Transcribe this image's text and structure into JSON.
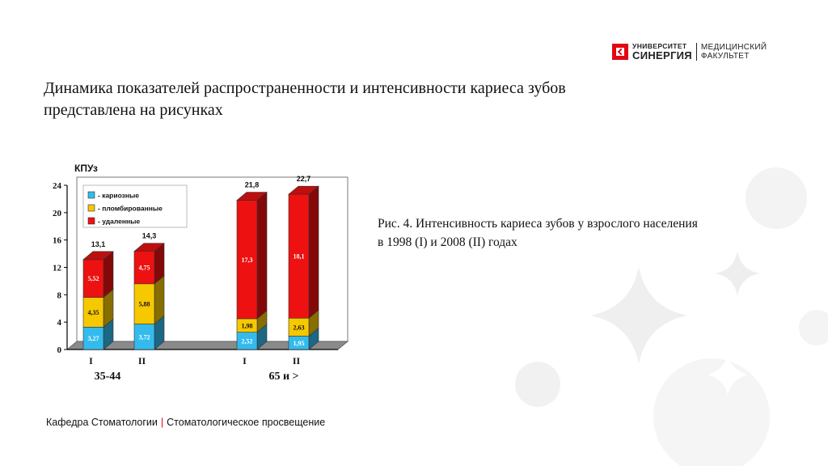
{
  "header": {
    "logo_line1": "УНИВЕРСИТЕТ",
    "logo_line2": "СИНЕРГИЯ",
    "logo_right1": "МЕДИЦИНСКИЙ",
    "logo_right2": "ФАКУЛЬТЕТ"
  },
  "slide": {
    "title_line1": "Динамика показателей распространенности и интенсивности кариеса зубов",
    "title_line2": "представлена на рисунках",
    "caption_line1": "Рис. 4. Интенсивность кариеса зубов у взрослого населения",
    "caption_line2": "в 1998 (I) и 2008 (II) годах"
  },
  "footer": {
    "left": "Кафедра Стоматологии",
    "right": "Стоматологическое просвещение"
  },
  "chart_data": {
    "type": "bar",
    "stacked": true,
    "ylabel": "КПУз",
    "ylim": [
      0,
      24
    ],
    "yticks": [
      "0",
      "4",
      "8",
      "12",
      "16",
      "20",
      "24"
    ],
    "categories": [
      "I",
      "II",
      "I",
      "II"
    ],
    "groups": [
      {
        "label": "35-44",
        "categories": [
          "I",
          "II"
        ]
      },
      {
        "label": "65 и >",
        "categories": [
          "I",
          "II"
        ]
      }
    ],
    "series": [
      {
        "name": "- кариозные",
        "color": "#33bbee",
        "values": [
          3.27,
          3.72,
          2.52,
          1.95
        ],
        "labels": [
          "3,27",
          "3,72",
          "2,52",
          "1,95"
        ]
      },
      {
        "name": "- пломбированные",
        "color": "#f5c800",
        "values": [
          4.35,
          5.88,
          1.98,
          2.63
        ],
        "labels": [
          "4,35",
          "5,88",
          "1,98",
          "2,63"
        ]
      },
      {
        "name": "- удаленные",
        "color": "#ee1111",
        "values": [
          5.52,
          4.75,
          17.3,
          18.1
        ],
        "labels": [
          "5,52",
          "4,75",
          "17,3",
          "18,1"
        ]
      }
    ],
    "totals": [
      13.1,
      14.3,
      21.8,
      22.7
    ],
    "total_labels": [
      "13,1",
      "14,3",
      "21,8",
      "22,7"
    ],
    "legend_position": "top-left",
    "grid": false
  }
}
